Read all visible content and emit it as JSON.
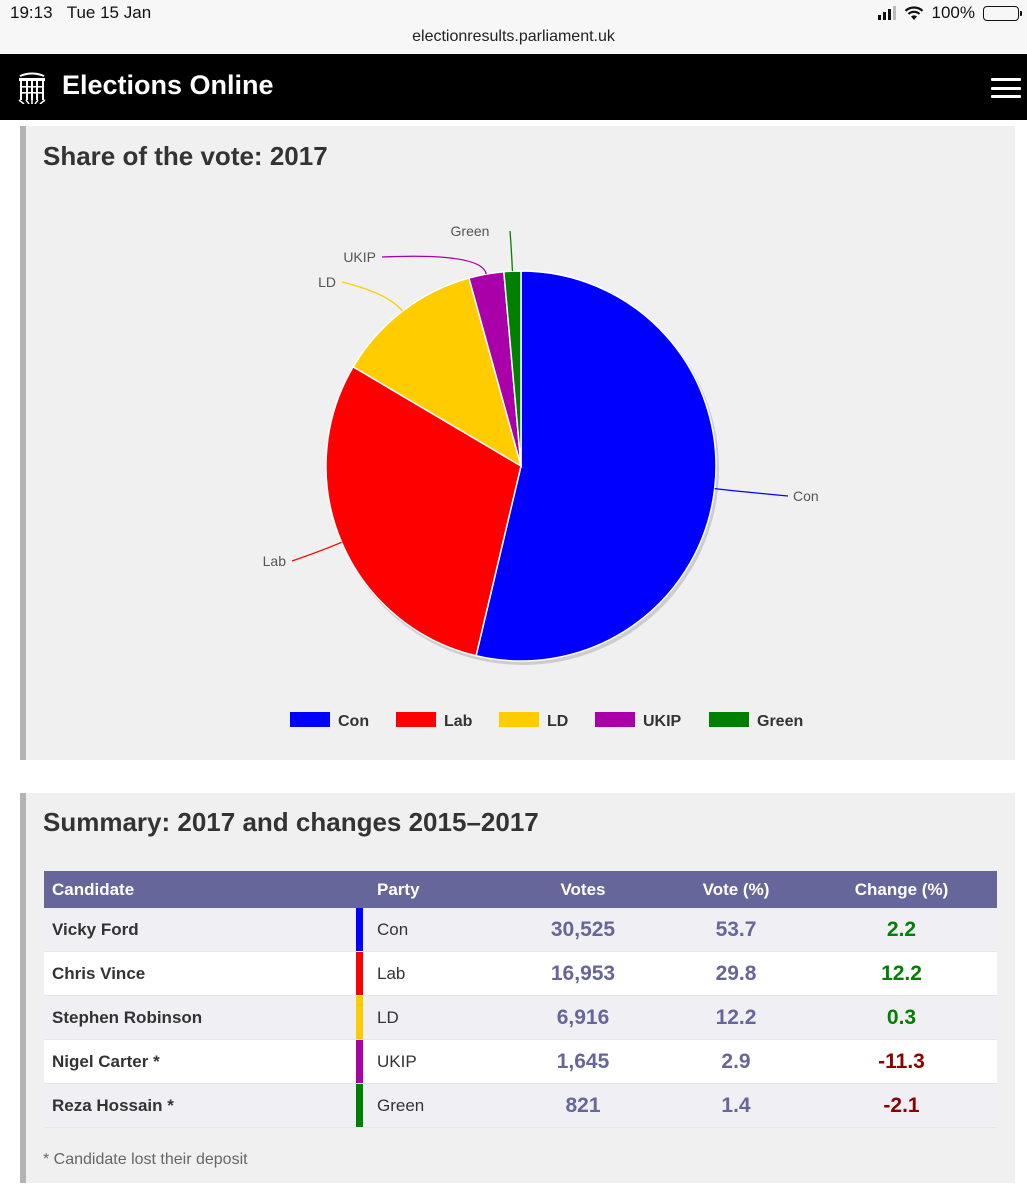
{
  "status_bar": {
    "time": "19:13",
    "date": "Tue 15 Jan",
    "battery": "100%",
    "icons": [
      "signal-icon",
      "wifi-icon",
      "battery-icon"
    ]
  },
  "url_bar": {
    "url": "electionresults.parliament.uk"
  },
  "header": {
    "title": "Elections Online",
    "logo_icon": "portcullis-icon",
    "menu_icon": "hamburger-menu-icon"
  },
  "vote_share": {
    "title": "Share of the vote: 2017"
  },
  "chart_data": {
    "type": "pie",
    "title": "Share of the vote: 2017",
    "categories": [
      "Con",
      "Lab",
      "LD",
      "UKIP",
      "Green"
    ],
    "values": [
      53.7,
      29.8,
      12.2,
      2.9,
      1.4
    ],
    "colors": [
      "#0000ff",
      "#ff0000",
      "#ffcc00",
      "#aa00aa",
      "#008000"
    ],
    "legend_position": "bottom",
    "slice_labels": [
      "Con",
      "Lab",
      "LD",
      "UKIP",
      "Green"
    ]
  },
  "summary": {
    "title": "Summary: 2017 and changes 2015–2017",
    "columns": [
      "Candidate",
      "Party",
      "Votes",
      "Vote (%)",
      "Change (%)"
    ],
    "rows": [
      {
        "candidate": "Vicky Ford",
        "party": "Con",
        "party_color": "#0000ff",
        "votes": "30,525",
        "vote_pct": "53.7",
        "change": "2.2",
        "change_color": "#008000"
      },
      {
        "candidate": "Chris Vince",
        "party": "Lab",
        "party_color": "#ff0000",
        "votes": "16,953",
        "vote_pct": "29.8",
        "change": "12.2",
        "change_color": "#008000"
      },
      {
        "candidate": "Stephen Robinson",
        "party": "LD",
        "party_color": "#ffcc00",
        "votes": "6,916",
        "vote_pct": "12.2",
        "change": "0.3",
        "change_color": "#008000"
      },
      {
        "candidate": "Nigel Carter *",
        "party": "UKIP",
        "party_color": "#aa00aa",
        "votes": "1,645",
        "vote_pct": "2.9",
        "change": "-11.3",
        "change_color": "#8b0000"
      },
      {
        "candidate": "Reza Hossain *",
        "party": "Green",
        "party_color": "#008000",
        "votes": "821",
        "vote_pct": "1.4",
        "change": "-2.1",
        "change_color": "#8b0000"
      }
    ],
    "footnote": "* Candidate lost their deposit"
  }
}
